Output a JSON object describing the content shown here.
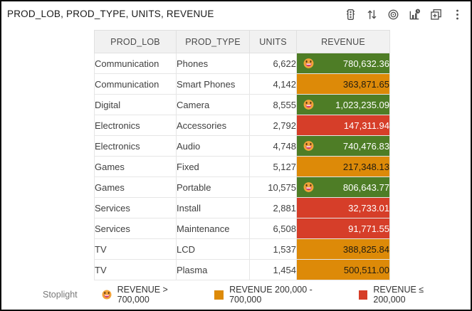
{
  "title": "PROD_LOB, PROD_TYPE, UNITS, REVENUE",
  "toolbar": {
    "icons": [
      "stoplight-icon",
      "sort-icon",
      "bullseye-icon",
      "chart-clock-icon",
      "duplicate-add-icon",
      "kebab-menu-icon"
    ]
  },
  "colors": {
    "high": "#4e7d26",
    "mid": "#dd8a08",
    "low": "#d63e29",
    "text_on_dark": "#ffffff",
    "text_on_mid": "#211c12",
    "header_bg": "#f1f1f1",
    "emoji_face": "#f2a33a"
  },
  "table": {
    "columns": [
      "PROD_LOB",
      "PROD_TYPE",
      "UNITS",
      "REVENUE"
    ],
    "rows": [
      {
        "prod_lob": "Communication",
        "prod_type": "Phones",
        "units": "6,622",
        "revenue": "780,632.36",
        "status": "high"
      },
      {
        "prod_lob": "Communication",
        "prod_type": "Smart Phones",
        "units": "4,142",
        "revenue": "363,871.65",
        "status": "mid"
      },
      {
        "prod_lob": "Digital",
        "prod_type": "Camera",
        "units": "8,555",
        "revenue": "1,023,235.09",
        "status": "high"
      },
      {
        "prod_lob": "Electronics",
        "prod_type": "Accessories",
        "units": "2,792",
        "revenue": "147,311.94",
        "status": "low"
      },
      {
        "prod_lob": "Electronics",
        "prod_type": "Audio",
        "units": "4,748",
        "revenue": "740,476.83",
        "status": "high"
      },
      {
        "prod_lob": "Games",
        "prod_type": "Fixed",
        "units": "5,127",
        "revenue": "217,348.13",
        "status": "mid"
      },
      {
        "prod_lob": "Games",
        "prod_type": "Portable",
        "units": "10,575",
        "revenue": "806,643.77",
        "status": "high"
      },
      {
        "prod_lob": "Services",
        "prod_type": "Install",
        "units": "2,881",
        "revenue": "32,733.01",
        "status": "low"
      },
      {
        "prod_lob": "Services",
        "prod_type": "Maintenance",
        "units": "6,508",
        "revenue": "91,771.55",
        "status": "low"
      },
      {
        "prod_lob": "TV",
        "prod_type": "LCD",
        "units": "1,537",
        "revenue": "388,825.84",
        "status": "mid"
      },
      {
        "prod_lob": "TV",
        "prod_type": "Plasma",
        "units": "1,454",
        "revenue": "500,511.00",
        "status": "mid"
      }
    ]
  },
  "legend": {
    "label": "Stoplight",
    "items": [
      {
        "type": "emoji",
        "label": "REVENUE > 700,000"
      },
      {
        "type": "square",
        "color": "#dd8a08",
        "label": "REVENUE 200,000 - 700,000"
      },
      {
        "type": "square",
        "color": "#d63e29",
        "label": "REVENUE ≤ 200,000"
      }
    ]
  },
  "chart_data": {
    "type": "table",
    "title": "PROD_LOB, PROD_TYPE, UNITS, REVENUE",
    "columns": [
      "PROD_LOB",
      "PROD_TYPE",
      "UNITS",
      "REVENUE"
    ],
    "rows": [
      [
        "Communication",
        "Phones",
        6622,
        780632.36
      ],
      [
        "Communication",
        "Smart Phones",
        4142,
        363871.65
      ],
      [
        "Digital",
        "Camera",
        8555,
        1023235.09
      ],
      [
        "Electronics",
        "Accessories",
        2792,
        147311.94
      ],
      [
        "Electronics",
        "Audio",
        4748,
        740476.83
      ],
      [
        "Games",
        "Fixed",
        5127,
        217348.13
      ],
      [
        "Games",
        "Portable",
        10575,
        806643.77
      ],
      [
        "Services",
        "Install",
        2881,
        32733.01
      ],
      [
        "Services",
        "Maintenance",
        6508,
        91771.55
      ],
      [
        "TV",
        "LCD",
        1537,
        388825.84
      ],
      [
        "TV",
        "Plasma",
        1454,
        500511.0
      ]
    ],
    "conditional_format": {
      "name": "Stoplight",
      "measure": "REVENUE",
      "rules": [
        {
          "condition": "REVENUE > 700,000",
          "color": "#4e7d26",
          "emoji": true
        },
        {
          "condition": "REVENUE 200,000 - 700,000",
          "color": "#dd8a08",
          "emoji": false
        },
        {
          "condition": "REVENUE ≤ 200,000",
          "color": "#d63e29",
          "emoji": false
        }
      ]
    }
  }
}
